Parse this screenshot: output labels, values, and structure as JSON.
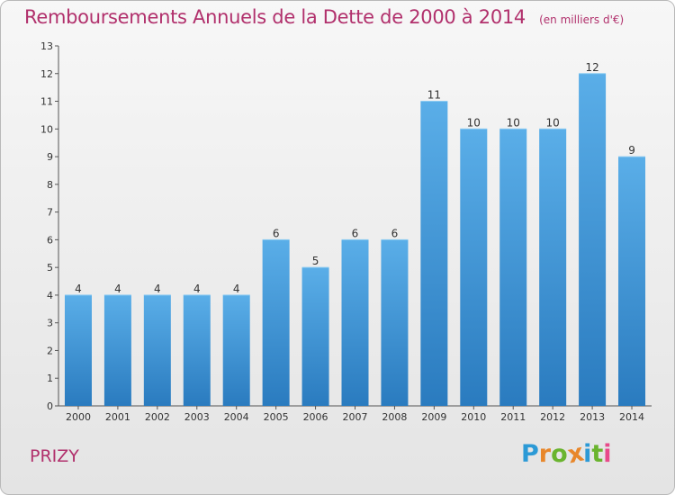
{
  "header": {
    "title": "Remboursements Annuels de la Dette de 2000 à 2014",
    "unit": "(en milliers d'€)"
  },
  "footer": {
    "commune": "PRIZY",
    "logo": {
      "letters": [
        "P",
        "r",
        "o",
        "x",
        "i",
        "t",
        "i"
      ],
      "colors": [
        "#2c9ad6",
        "#e8872b",
        "#6ab42e",
        "#e8872b",
        "#2c9ad6",
        "#6ab42e",
        "#e84a8a"
      ]
    }
  },
  "chart_data": {
    "type": "bar",
    "categories": [
      "2000",
      "2001",
      "2002",
      "2003",
      "2004",
      "2005",
      "2006",
      "2007",
      "2008",
      "2009",
      "2010",
      "2011",
      "2012",
      "2013",
      "2014"
    ],
    "values": [
      4,
      4,
      4,
      4,
      4,
      6,
      5,
      6,
      6,
      11,
      10,
      10,
      10,
      12,
      9
    ],
    "title": "Remboursements Annuels de la Dette de 2000 à 2014",
    "xlabel": "",
    "ylabel": "",
    "ylim": [
      0,
      13
    ],
    "yticks": [
      0,
      1,
      2,
      3,
      4,
      5,
      6,
      7,
      8,
      9,
      10,
      11,
      12,
      13
    ],
    "grid": false,
    "data_labels": true,
    "bar_color_top": "#5aaee8",
    "bar_color_bottom": "#2a7bbf"
  }
}
